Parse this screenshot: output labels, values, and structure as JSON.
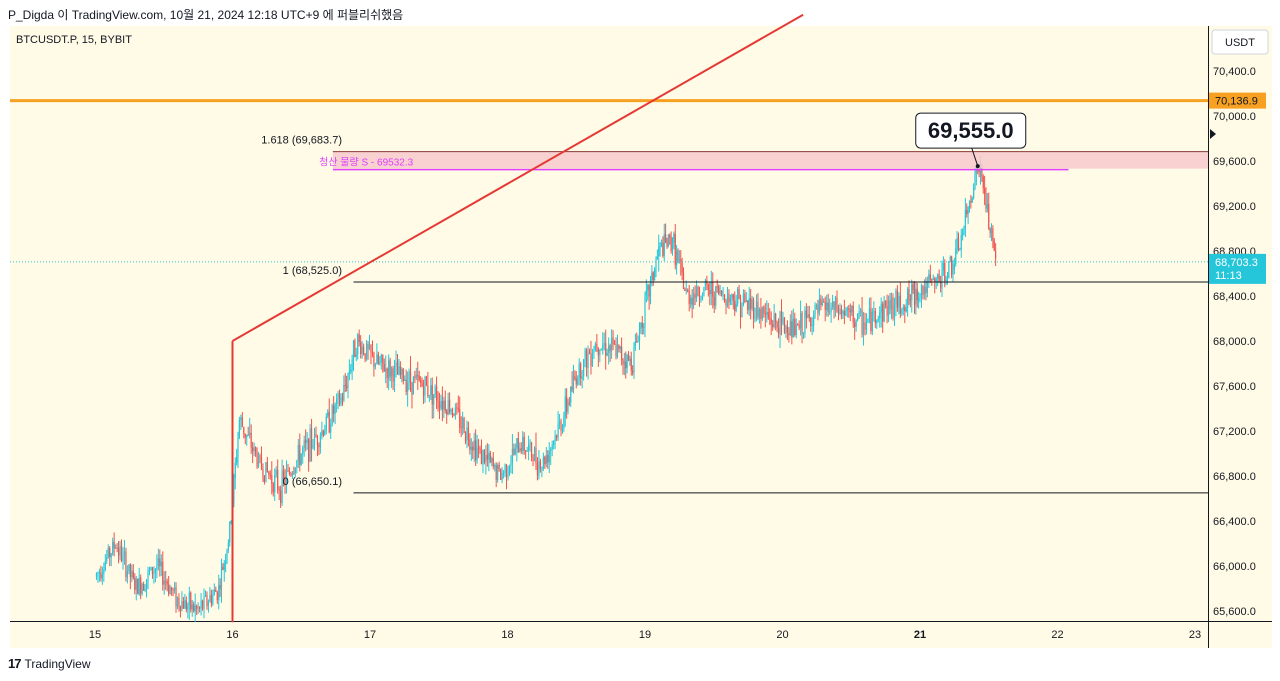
{
  "header": {
    "publish_line": "P_Digda 이 TradingView.com, 10월 21, 2024 12:18 UTC+9 에 퍼블리쉬했음"
  },
  "symbol_line": "BTCUSDT.P, 15, BYBIT",
  "currency_button": "USDT",
  "footer": {
    "logo_glyph": "17",
    "brand": "TradingView"
  },
  "colors": {
    "background": "#fffbe6",
    "candle_up": "#26c6da",
    "candle_down": "#ef5350",
    "trendline": "#e53935",
    "resistance": "#f7a021",
    "zone_fill": "#f8c9cc",
    "liq_line": "#e040fb",
    "price_badge": "#26c6da"
  },
  "chart_data": {
    "type": "candlestick",
    "x_ticks": [
      "15",
      "16",
      "17",
      "18",
      "19",
      "20",
      "21",
      "22",
      "23"
    ],
    "y_ticks": [
      "70,400.0",
      "70,000.0",
      "69,600.0",
      "69,200.0",
      "68,800.0",
      "68,400.0",
      "68,000.0",
      "67,600.0",
      "67,200.0",
      "66,800.0",
      "66,400.0",
      "66,000.0",
      "65,600.0"
    ],
    "ylim": [
      65500,
      70900
    ],
    "current_price": {
      "label": "68,703.3",
      "countdown": "11:13",
      "value": 68703.3
    },
    "resistance_level": {
      "label": "70,136.9",
      "value": 70136.9
    },
    "fib_levels": [
      {
        "label": "1.618 (69,683.7)",
        "value": 69683.7
      },
      {
        "label": "1 (68,525.0)",
        "value": 68525.0
      },
      {
        "label": "0 (66,650.1)",
        "value": 66650.1
      }
    ],
    "liquidation_zone": {
      "label": "청산 물량 S - 69532.3",
      "top": 69683.7,
      "bottom": 69532.3
    },
    "callout": {
      "label": "69,555.0",
      "value": 69555.0
    },
    "trendline": {
      "start": {
        "day": 16.0,
        "price": 68000
      },
      "end": {
        "day": 20.15,
        "price": 70900
      }
    },
    "candles_summary": [
      {
        "day": 15.0,
        "price": 65900
      },
      {
        "day": 15.15,
        "price": 66200
      },
      {
        "day": 15.3,
        "price": 65800
      },
      {
        "day": 15.45,
        "price": 66000
      },
      {
        "day": 15.6,
        "price": 65700
      },
      {
        "day": 15.75,
        "price": 65600
      },
      {
        "day": 15.9,
        "price": 65800
      },
      {
        "day": 15.98,
        "price": 66300
      },
      {
        "day": 16.05,
        "price": 67300
      },
      {
        "day": 16.2,
        "price": 66900
      },
      {
        "day": 16.35,
        "price": 66700
      },
      {
        "day": 16.5,
        "price": 67000
      },
      {
        "day": 16.65,
        "price": 67200
      },
      {
        "day": 16.8,
        "price": 67500
      },
      {
        "day": 16.9,
        "price": 68000
      },
      {
        "day": 17.05,
        "price": 67800
      },
      {
        "day": 17.2,
        "price": 67700
      },
      {
        "day": 17.4,
        "price": 67600
      },
      {
        "day": 17.6,
        "price": 67400
      },
      {
        "day": 17.8,
        "price": 67000
      },
      {
        "day": 17.95,
        "price": 66800
      },
      {
        "day": 18.1,
        "price": 67100
      },
      {
        "day": 18.25,
        "price": 66900
      },
      {
        "day": 18.4,
        "price": 67300
      },
      {
        "day": 18.5,
        "price": 67700
      },
      {
        "day": 18.65,
        "price": 68000
      },
      {
        "day": 18.8,
        "price": 67900
      },
      {
        "day": 18.9,
        "price": 67800
      },
      {
        "day": 19.0,
        "price": 68300
      },
      {
        "day": 19.1,
        "price": 68800
      },
      {
        "day": 19.2,
        "price": 68900
      },
      {
        "day": 19.3,
        "price": 68400
      },
      {
        "day": 19.45,
        "price": 68450
      },
      {
        "day": 19.6,
        "price": 68400
      },
      {
        "day": 19.8,
        "price": 68300
      },
      {
        "day": 19.95,
        "price": 68150
      },
      {
        "day": 20.1,
        "price": 68100
      },
      {
        "day": 20.3,
        "price": 68300
      },
      {
        "day": 20.45,
        "price": 68250
      },
      {
        "day": 20.6,
        "price": 68150
      },
      {
        "day": 20.75,
        "price": 68300
      },
      {
        "day": 20.9,
        "price": 68350
      },
      {
        "day": 21.0,
        "price": 68450
      },
      {
        "day": 21.15,
        "price": 68550
      },
      {
        "day": 21.25,
        "price": 68700
      },
      {
        "day": 21.32,
        "price": 69000
      },
      {
        "day": 21.38,
        "price": 69350
      },
      {
        "day": 21.42,
        "price": 69555
      },
      {
        "day": 21.47,
        "price": 69300
      },
      {
        "day": 21.52,
        "price": 68900
      },
      {
        "day": 21.55,
        "price": 68703
      }
    ]
  }
}
